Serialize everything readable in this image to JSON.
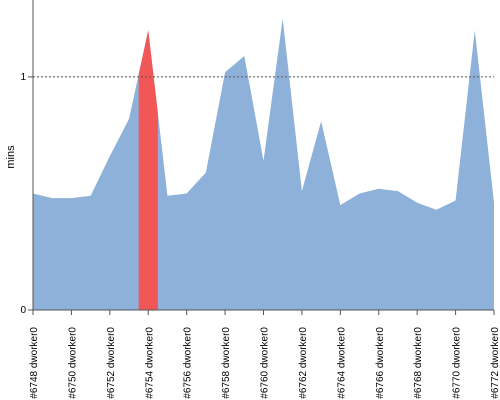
{
  "chart_data": {
    "type": "area",
    "ylabel": "mins",
    "yticks": [
      0,
      1
    ],
    "ylim": [
      0,
      1.33
    ],
    "reference_line": 1,
    "x": [
      6748,
      6749,
      6750,
      6751,
      6752,
      6753,
      6754,
      6755,
      6756,
      6757,
      6758,
      6759,
      6760,
      6761,
      6762,
      6763,
      6764,
      6765,
      6766,
      6767,
      6768,
      6769,
      6770,
      6771,
      6772
    ],
    "x_tick_labels": [
      "#6748 dworker0",
      "#6750 dworker0",
      "#6752 dworker0",
      "#6754 dworker0",
      "#6756 dworker0",
      "#6758 dworker0",
      "#6760 dworker0",
      "#6762 dworker0",
      "#6764 dworker0",
      "#6766 dworker0",
      "#6768 dworker0",
      "#6770 dworker0",
      "#6772 dworker0"
    ],
    "values": [
      0.5,
      0.48,
      0.48,
      0.49,
      0.66,
      0.82,
      1.2,
      0.49,
      0.5,
      0.59,
      1.02,
      1.09,
      0.64,
      1.25,
      0.51,
      0.81,
      0.45,
      0.5,
      0.52,
      0.51,
      0.46,
      0.43,
      0.47,
      1.2,
      0.46
    ],
    "highlight_index": 6,
    "colors": {
      "area": "#8eb1da",
      "highlight": "#f15757",
      "axis": "#555555",
      "refline": "#555555"
    }
  }
}
